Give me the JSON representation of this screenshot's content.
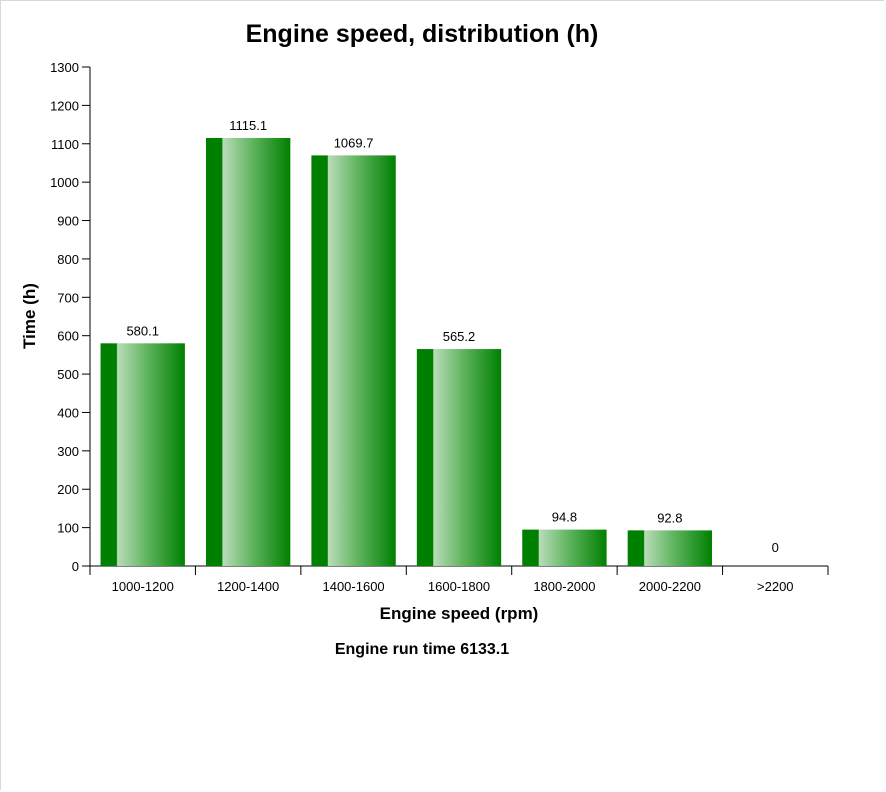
{
  "chart_data": {
    "type": "bar",
    "title": "Engine speed, distribution (h)",
    "xlabel": "Engine speed (rpm)",
    "ylabel": "Time (h)",
    "categories": [
      "1000-1200",
      "1200-1400",
      "1400-1600",
      "1600-1800",
      "1800-2000",
      "2000-2200",
      ">2200"
    ],
    "values": [
      580.1,
      1115.1,
      1069.7,
      565.2,
      94.8,
      92.8,
      0
    ],
    "data_labels": [
      "580.1",
      "1115.1",
      "1069.7",
      "565.2",
      "94.8",
      "92.8",
      "0"
    ],
    "ylim": [
      0,
      1300
    ],
    "yticks": [
      0,
      100,
      200,
      300,
      400,
      500,
      600,
      700,
      800,
      900,
      1000,
      1100,
      1200,
      1300
    ],
    "grid": false,
    "legend": "none",
    "bar_color": "#008000",
    "footer": "Engine run time 6133.1"
  }
}
